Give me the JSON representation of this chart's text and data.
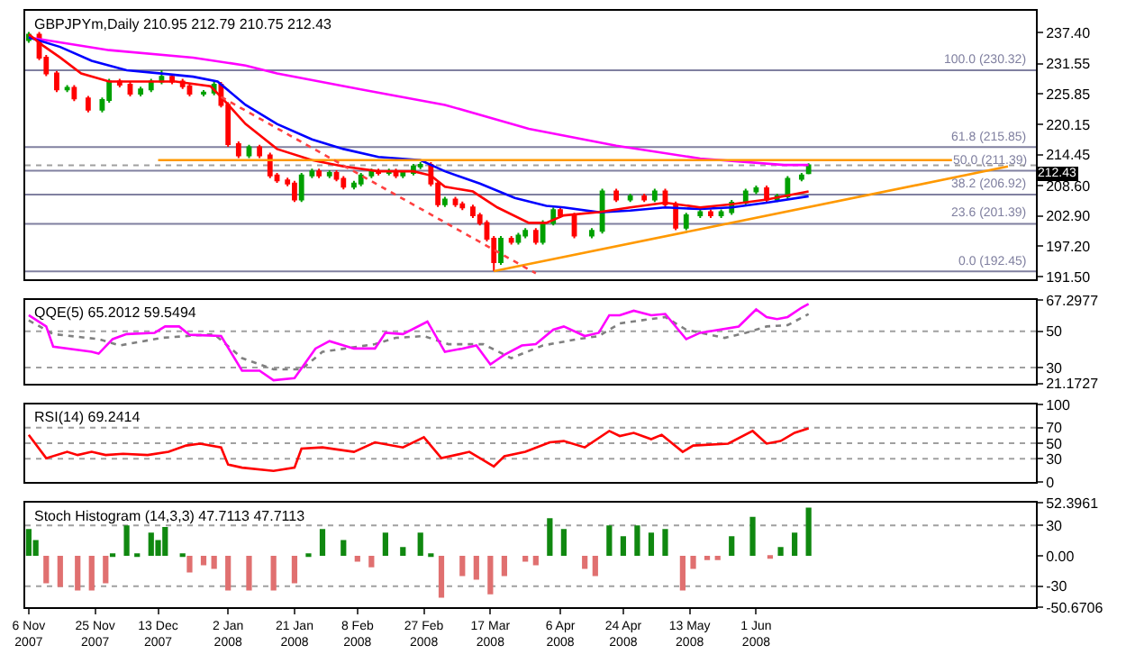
{
  "chart_data": [
    {
      "type": "candlestick",
      "title": "GBPJPYm,Daily 210.95 212.79 210.75 212.43",
      "tick_labels": "y",
      "xlim": [
        "2007-11-05",
        "2008-08-20"
      ],
      "ylim": [
        191.0,
        241.5
      ],
      "yticks": [
        {
          "value": 237.4,
          "label": "237.40"
        },
        {
          "value": 231.55,
          "label": "231.55"
        },
        {
          "value": 225.85,
          "label": "225.85"
        },
        {
          "value": 220.15,
          "label": "220.15"
        },
        {
          "value": 214.45,
          "label": "214.45"
        },
        {
          "value": 208.6,
          "label": "208.60"
        },
        {
          "value": 202.9,
          "label": "202.90"
        },
        {
          "value": 197.2,
          "label": "197.20"
        },
        {
          "value": 191.5,
          "label": "191.50"
        }
      ],
      "x": [
        "2007-11-06",
        "2007-11-09",
        "2007-11-11",
        "2007-11-14",
        "2007-11-17",
        "2007-11-19",
        "2007-11-23",
        "2007-11-27",
        "2007-11-29",
        "2007-12-02",
        "2007-12-05",
        "2007-12-08",
        "2007-12-11",
        "2007-12-14",
        "2007-12-17",
        "2007-12-20",
        "2007-12-22",
        "2007-12-26",
        "2007-12-29",
        "2007-12-31",
        "2008-01-02",
        "2008-01-05",
        "2008-01-08",
        "2008-01-11",
        "2008-01-14",
        "2008-01-16",
        "2008-01-19",
        "2008-01-21",
        "2008-01-23",
        "2008-01-26",
        "2008-01-28",
        "2008-01-31",
        "2008-02-02",
        "2008-02-04",
        "2008-02-07",
        "2008-02-09",
        "2008-02-12",
        "2008-02-14",
        "2008-02-17",
        "2008-02-19",
        "2008-02-21",
        "2008-02-24",
        "2008-02-26",
        "2008-02-29",
        "2008-03-02",
        "2008-03-04",
        "2008-03-07",
        "2008-03-09",
        "2008-03-12",
        "2008-03-14",
        "2008-03-16",
        "2008-03-18",
        "2008-03-20",
        "2008-03-23",
        "2008-03-25",
        "2008-03-27",
        "2008-03-30",
        "2008-04-01",
        "2008-04-04",
        "2008-04-06",
        "2008-04-10",
        "2008-04-15",
        "2008-04-18",
        "2008-04-22",
        "2008-04-26",
        "2008-04-30",
        "2008-05-03",
        "2008-05-06",
        "2008-05-09",
        "2008-05-12",
        "2008-05-16",
        "2008-05-19",
        "2008-05-22",
        "2008-05-25",
        "2008-05-29",
        "2008-06-01",
        "2008-06-04",
        "2008-06-07",
        "2008-06-10",
        "2008-06-14",
        "2008-06-16"
      ],
      "ohlc": [
        [
          236.0,
          237.5,
          235.5,
          237.0
        ],
        [
          237.0,
          237.5,
          232.2,
          232.7
        ],
        [
          232.7,
          233.2,
          229.2,
          229.7
        ],
        [
          229.7,
          230.2,
          226.2,
          226.7
        ],
        [
          226.7,
          227.5,
          226.2,
          227.0
        ],
        [
          227.0,
          227.5,
          224.5,
          225.0
        ],
        [
          225.0,
          225.5,
          222.4,
          222.9
        ],
        [
          222.9,
          225.2,
          222.4,
          224.7
        ],
        [
          224.7,
          228.7,
          224.2,
          228.2
        ],
        [
          228.2,
          228.7,
          227.1,
          227.6
        ],
        [
          227.6,
          228.1,
          225.4,
          225.9
        ],
        [
          225.9,
          227.2,
          225.4,
          226.7
        ],
        [
          226.7,
          228.7,
          226.2,
          228.2
        ],
        [
          228.2,
          230.3,
          227.7,
          229.1
        ],
        [
          229.1,
          229.6,
          227.7,
          228.2
        ],
        [
          228.2,
          228.7,
          226.8,
          227.3
        ],
        [
          227.3,
          227.8,
          225.4,
          225.9
        ],
        [
          225.9,
          226.6,
          225.4,
          226.1
        ],
        [
          226.1,
          228.1,
          225.6,
          227.6
        ],
        [
          227.6,
          228.1,
          223.3,
          223.8
        ],
        [
          223.8,
          224.3,
          215.9,
          216.4
        ],
        [
          216.4,
          216.9,
          213.8,
          214.3
        ],
        [
          214.3,
          216.3,
          213.8,
          215.8
        ],
        [
          215.8,
          216.3,
          213.8,
          214.3
        ],
        [
          214.3,
          214.8,
          210.0,
          210.5
        ],
        [
          210.5,
          211.0,
          209.1,
          209.6
        ],
        [
          209.6,
          210.1,
          208.5,
          209.0
        ],
        [
          209.0,
          209.5,
          205.5,
          206.0
        ],
        [
          206.0,
          211.0,
          205.5,
          210.5
        ],
        [
          210.5,
          211.8,
          210.0,
          211.3
        ],
        [
          211.3,
          211.8,
          210.0,
          210.5
        ],
        [
          210.5,
          211.5,
          210.0,
          211.0
        ],
        [
          211.0,
          211.5,
          209.4,
          209.9
        ],
        [
          209.9,
          210.4,
          207.9,
          208.4
        ],
        [
          208.4,
          209.5,
          207.9,
          209.0
        ],
        [
          209.0,
          211.0,
          208.5,
          210.5
        ],
        [
          210.5,
          211.8,
          210.0,
          211.3
        ],
        [
          211.3,
          211.8,
          210.5,
          211.0
        ],
        [
          211.0,
          211.8,
          210.5,
          211.3
        ],
        [
          211.3,
          211.8,
          210.0,
          210.5
        ],
        [
          210.5,
          211.5,
          210.0,
          211.0
        ],
        [
          211.0,
          212.7,
          210.5,
          212.2
        ],
        [
          212.2,
          213.0,
          211.7,
          212.5
        ],
        [
          212.5,
          213.0,
          208.5,
          209.0
        ],
        [
          209.0,
          209.5,
          204.6,
          205.1
        ],
        [
          205.1,
          206.5,
          204.6,
          206.0
        ],
        [
          206.0,
          206.5,
          204.6,
          205.1
        ],
        [
          205.1,
          205.6,
          204.0,
          204.5
        ],
        [
          204.5,
          205.0,
          202.5,
          203.0
        ],
        [
          203.0,
          203.5,
          201.1,
          201.6
        ],
        [
          201.6,
          202.1,
          198.1,
          198.6
        ],
        [
          198.6,
          199.1,
          192.5,
          194.2
        ],
        [
          194.2,
          199.1,
          193.7,
          198.6
        ],
        [
          198.6,
          199.1,
          197.5,
          198.0
        ],
        [
          198.0,
          199.7,
          197.5,
          199.2
        ],
        [
          199.2,
          200.6,
          198.7,
          200.1
        ],
        [
          200.1,
          200.6,
          197.5,
          198.0
        ],
        [
          198.0,
          202.1,
          197.5,
          201.6
        ],
        [
          201.6,
          204.5,
          201.1,
          204.0
        ],
        [
          204.0,
          204.5,
          202.5,
          203.0
        ],
        [
          203.0,
          203.5,
          198.7,
          199.2
        ],
        [
          199.2,
          200.6,
          198.7,
          200.1
        ],
        [
          200.1,
          208.0,
          199.6,
          207.5
        ],
        [
          207.5,
          208.0,
          205.5,
          206.0
        ],
        [
          206.0,
          207.1,
          205.5,
          206.6
        ],
        [
          206.6,
          207.1,
          205.5,
          206.0
        ],
        [
          206.0,
          208.0,
          205.5,
          207.5
        ],
        [
          207.5,
          208.0,
          204.6,
          205.1
        ],
        [
          205.1,
          205.6,
          200.2,
          200.7
        ],
        [
          200.7,
          203.5,
          200.2,
          203.0
        ],
        [
          203.0,
          204.1,
          202.5,
          203.6
        ],
        [
          203.6,
          204.1,
          202.5,
          203.0
        ],
        [
          203.0,
          204.1,
          202.5,
          203.6
        ],
        [
          203.6,
          205.9,
          203.1,
          205.4
        ],
        [
          205.4,
          208.0,
          204.9,
          207.5
        ],
        [
          207.5,
          208.6,
          207.0,
          208.1
        ],
        [
          208.1,
          208.6,
          205.5,
          206.0
        ],
        [
          206.0,
          207.1,
          205.5,
          206.6
        ],
        [
          206.6,
          210.4,
          206.1,
          209.9
        ],
        [
          209.9,
          211.0,
          209.4,
          210.5
        ],
        [
          210.95,
          212.79,
          210.75,
          212.43
        ]
      ],
      "series": [
        {
          "type": "line",
          "color": "#ff00ff",
          "x": [
            "2007-11-06",
            "2007-11-29",
            "2007-12-23",
            "2008-01-07",
            "2008-01-16",
            "2008-02-09",
            "2008-03-04",
            "2008-03-28",
            "2008-04-22",
            "2008-05-16",
            "2008-06-09",
            "2008-06-16"
          ],
          "values": [
            236.5,
            234.1,
            232.7,
            231.2,
            229.7,
            226.7,
            223.8,
            219.3,
            216.1,
            213.7,
            212.5,
            212.5
          ]
        },
        {
          "type": "line",
          "color": "#0000ff",
          "x": [
            "2007-11-06",
            "2007-11-15",
            "2007-11-24",
            "2007-12-04",
            "2007-12-14",
            "2007-12-23",
            "2007-12-30",
            "2008-01-07",
            "2008-01-16",
            "2008-01-26",
            "2008-02-04",
            "2008-02-14",
            "2008-02-26",
            "2008-03-04",
            "2008-03-14",
            "2008-03-24",
            "2008-04-02",
            "2008-04-07",
            "2008-04-17",
            "2008-04-26",
            "2008-05-06",
            "2008-05-16",
            "2008-05-25",
            "2008-06-04",
            "2008-06-16"
          ],
          "values": [
            236.5,
            234.7,
            232.1,
            230.3,
            229.7,
            229.1,
            228.2,
            223.8,
            220.2,
            217.3,
            215.5,
            214.0,
            213.4,
            211.3,
            209.0,
            206.3,
            204.8,
            204.5,
            203.6,
            203.9,
            204.5,
            204.2,
            204.5,
            205.4,
            206.6
          ]
        },
        {
          "type": "line",
          "color": "#ff0000",
          "x": [
            "2007-11-06",
            "2007-11-10",
            "2007-11-15",
            "2007-11-21",
            "2007-11-29",
            "2007-12-09",
            "2007-12-18",
            "2007-12-28",
            "2007-12-31",
            "2008-01-07",
            "2008-01-16",
            "2008-01-26",
            "2008-02-04",
            "2008-02-14",
            "2008-02-24",
            "2008-02-29",
            "2008-03-04",
            "2008-03-12",
            "2008-03-19",
            "2008-03-28",
            "2008-04-02",
            "2008-04-07",
            "2008-04-17",
            "2008-04-26",
            "2008-05-06",
            "2008-05-16",
            "2008-05-25",
            "2008-06-04",
            "2008-06-16"
          ],
          "values": [
            237.1,
            235.0,
            232.7,
            229.7,
            228.2,
            228.2,
            228.2,
            227.3,
            225.3,
            220.2,
            215.5,
            213.4,
            212.2,
            211.3,
            211.3,
            210.5,
            208.4,
            207.5,
            204.5,
            201.6,
            201.6,
            203.0,
            203.6,
            204.5,
            205.4,
            204.5,
            205.1,
            206.0,
            207.5
          ]
        },
        {
          "type": "line",
          "color": "#ff9900",
          "x": [
            "2008-03-18",
            "2008-08-12"
          ],
          "values": [
            192.5,
            212.2
          ]
        },
        {
          "type": "line",
          "color": "#ff9900",
          "x": [
            "2007-12-13",
            "2008-07-27"
          ],
          "values": [
            213.4,
            213.4
          ]
        },
        {
          "type": "line",
          "color": "#ff4040",
          "line_style": "dotted",
          "x": [
            "2007-12-31",
            "2008-03-30"
          ],
          "values": [
            225.3,
            192.1
          ]
        }
      ],
      "ref_lines": [
        {
          "axis": "y",
          "value": 230.32,
          "label": "100.0 (230.32)",
          "color": "#8080a0"
        },
        {
          "axis": "y",
          "value": 215.85,
          "label": "61.8 (215.85)",
          "color": "#8080a0"
        },
        {
          "axis": "y",
          "value": 211.39,
          "label": "50.0 (211.39)",
          "color": "#8080a0"
        },
        {
          "axis": "y",
          "value": 206.92,
          "label": "38.2 (206.92)",
          "color": "#8080a0"
        },
        {
          "axis": "y",
          "value": 201.39,
          "label": "23.6 (201.39)",
          "color": "#8080a0"
        },
        {
          "axis": "y",
          "value": 192.45,
          "label": "0.0 (192.45)",
          "color": "#8080a0"
        },
        {
          "axis": "y",
          "value": 212.43,
          "label": "212.43",
          "color": "#a0a0a0",
          "line_style": "dotted"
        }
      ]
    },
    {
      "type": "line",
      "title": "QQE(5) 65.2012 59.5494",
      "tick_labels": "y",
      "xlim": [
        "2007-11-05",
        "2008-08-20"
      ],
      "ylim": [
        21.1727,
        67.2977
      ],
      "yticks": [
        67.2977,
        50,
        30,
        21.1727
      ],
      "ref_lines": [
        {
          "axis": "y",
          "value": 50,
          "color": "#a0a0a0",
          "line_style": "dotted"
        },
        {
          "axis": "y",
          "value": 30,
          "color": "#a0a0a0",
          "line_style": "dotted"
        }
      ],
      "series": [
        {
          "color": "#808080",
          "line_style": "dotted",
          "x": [
            "2007-11-06",
            "2007-11-13",
            "2007-11-26",
            "2007-12-02",
            "2007-12-14",
            "2007-12-29",
            "2008-01-06",
            "2008-01-15",
            "2008-01-23",
            "2008-01-29",
            "2008-02-13",
            "2008-02-19",
            "2008-02-27",
            "2008-03-05",
            "2008-03-15",
            "2008-03-23",
            "2008-04-01",
            "2008-04-11",
            "2008-04-17",
            "2008-04-23",
            "2008-05-06",
            "2008-05-12",
            "2008-05-23",
            "2008-05-29",
            "2008-06-04",
            "2008-06-10",
            "2008-06-16"
          ],
          "values": [
            56.1,
            48.5,
            45.7,
            42.2,
            46.4,
            48.5,
            35.2,
            29.0,
            29.0,
            38.7,
            42.9,
            46.4,
            47.4,
            42.9,
            42.9,
            35.2,
            42.2,
            45.7,
            47.4,
            54.4,
            57.9,
            50.9,
            46.4,
            49.2,
            52.7,
            53.4,
            59.5494
          ]
        },
        {
          "color": "#ff00ff",
          "x": [
            "2007-11-06",
            "2007-11-11",
            "2007-11-13",
            "2007-11-24",
            "2007-11-26",
            "2007-11-30",
            "2007-12-04",
            "2007-12-12",
            "2007-12-15",
            "2007-12-19",
            "2007-12-22",
            "2007-12-31",
            "2008-01-06",
            "2008-01-11",
            "2008-01-15",
            "2008-01-21",
            "2008-01-27",
            "2008-01-31",
            "2008-02-07",
            "2008-02-13",
            "2008-02-16",
            "2008-02-21",
            "2008-02-28",
            "2008-03-04",
            "2008-03-09",
            "2008-03-13",
            "2008-03-17",
            "2008-03-21",
            "2008-03-26",
            "2008-03-30",
            "2008-04-04",
            "2008-04-07",
            "2008-04-13",
            "2008-04-17",
            "2008-04-20",
            "2008-04-23",
            "2008-04-27",
            "2008-05-02",
            "2008-05-06",
            "2008-05-12",
            "2008-05-16",
            "2008-05-27",
            "2008-06-01",
            "2008-06-04",
            "2008-06-07",
            "2008-06-10",
            "2008-06-14",
            "2008-06-16"
          ],
          "values": [
            58.9,
            52.7,
            41.5,
            38.7,
            37.7,
            45.7,
            48.5,
            49.2,
            52.7,
            52.7,
            48.1,
            47.4,
            28.3,
            28.3,
            23.0,
            24.1,
            40.5,
            44.6,
            40.5,
            40.5,
            49.2,
            48.5,
            55.4,
            38.7,
            40.5,
            42.2,
            31.7,
            37.0,
            42.2,
            42.9,
            50.9,
            52.7,
            47.4,
            49.2,
            58.9,
            58.9,
            61.4,
            58.9,
            59.6,
            45.7,
            49.2,
            52.7,
            62.1,
            57.9,
            56.8,
            57.9,
            63.1,
            65.2012
          ]
        }
      ]
    },
    {
      "type": "line",
      "title": "RSI(14) 69.2414",
      "tick_labels": "y",
      "xlim": [
        "2007-11-05",
        "2008-08-20"
      ],
      "ylim": [
        0,
        100
      ],
      "yticks": [
        100,
        70,
        50,
        30,
        0
      ],
      "ref_lines": [
        {
          "axis": "y",
          "value": 70,
          "color": "#a0a0a0",
          "line_style": "dotted"
        },
        {
          "axis": "y",
          "value": 50,
          "color": "#a0a0a0",
          "line_style": "dotted"
        },
        {
          "axis": "y",
          "value": 30,
          "color": "#a0a0a0",
          "line_style": "dotted"
        }
      ],
      "series": [
        {
          "color": "#ff0000",
          "x": [
            "2007-11-06",
            "2007-11-11",
            "2007-11-17",
            "2007-11-20",
            "2007-11-24",
            "2007-11-28",
            "2007-12-03",
            "2007-12-10",
            "2007-12-16",
            "2007-12-21",
            "2007-12-25",
            "2007-12-31",
            "2008-01-02",
            "2008-01-06",
            "2008-01-15",
            "2008-01-21",
            "2008-01-23",
            "2008-01-29",
            "2008-02-07",
            "2008-02-13",
            "2008-02-21",
            "2008-02-27",
            "2008-03-03",
            "2008-03-11",
            "2008-03-18",
            "2008-03-21",
            "2008-03-27",
            "2008-04-03",
            "2008-04-07",
            "2008-04-13",
            "2008-04-20",
            "2008-04-23",
            "2008-04-27",
            "2008-05-02",
            "2008-05-05",
            "2008-05-11",
            "2008-05-14",
            "2008-05-24",
            "2008-05-31",
            "2008-06-04",
            "2008-06-08",
            "2008-06-12",
            "2008-06-16"
          ],
          "values": [
            60.8,
            30.6,
            38.8,
            34.7,
            38.8,
            34.7,
            36.3,
            34.7,
            38.8,
            46.9,
            49.4,
            44.5,
            22.4,
            18.4,
            14.3,
            18.4,
            42.9,
            44.5,
            38.8,
            51.0,
            44.5,
            57.6,
            30.6,
            38.8,
            20.0,
            33.1,
            38.8,
            51.0,
            52.7,
            44.5,
            65.7,
            59.2,
            63.3,
            55.1,
            60.8,
            38.8,
            46.9,
            49.4,
            65.7,
            49.4,
            52.7,
            63.3,
            69.2414
          ]
        }
      ]
    },
    {
      "type": "bar",
      "title": "Stoch Histogram (14,3,3) 47.7113 47.7113",
      "xlim": [
        "2007-11-05",
        "2008-08-20"
      ],
      "ylim": [
        -50.6706,
        52.3961
      ],
      "yticks": [
        52.3961,
        30,
        {
          "value": 0,
          "label": "0.00"
        },
        -30,
        -50.6706
      ],
      "xticks": [
        {
          "value": "2007-11-06",
          "label": "6 Nov 2007"
        },
        {
          "value": "2007-11-25",
          "label": "25 Nov 2007"
        },
        {
          "value": "2007-12-13",
          "label": "13 Dec 2007"
        },
        {
          "value": "2008-01-02",
          "label": "2 Jan 2008"
        },
        {
          "value": "2008-01-21",
          "label": "21 Jan 2008"
        },
        {
          "value": "2008-02-08",
          "label": "8 Feb 2008"
        },
        {
          "value": "2008-02-27",
          "label": "27 Feb 2008"
        },
        {
          "value": "2008-03-17",
          "label": "17 Mar 2008"
        },
        {
          "value": "2008-04-06",
          "label": "6 Apr 2008"
        },
        {
          "value": "2008-04-24",
          "label": "24 Apr 2008"
        },
        {
          "value": "2008-05-13",
          "label": "13 May 2008"
        },
        {
          "value": "2008-06-01",
          "label": "1 Jun 2008"
        }
      ],
      "ref_lines": [
        {
          "axis": "y",
          "value": 30,
          "color": "#a0a0a0",
          "line_style": "dotted"
        },
        {
          "axis": "y",
          "value": -30,
          "color": "#a0a0a0",
          "line_style": "dotted"
        }
      ],
      "x": [
        "2007-11-06",
        "2007-11-08",
        "2007-11-11",
        "2007-11-15",
        "2007-11-20",
        "2007-11-24",
        "2007-11-28",
        "2007-11-30",
        "2007-12-04",
        "2007-12-07",
        "2007-12-11",
        "2007-12-13",
        "2007-12-15",
        "2007-12-20",
        "2007-12-22",
        "2007-12-26",
        "2007-12-29",
        "2008-01-02",
        "2008-01-08",
        "2008-01-15",
        "2008-01-21",
        "2008-01-25",
        "2008-01-29",
        "2008-02-04",
        "2008-02-08",
        "2008-02-12",
        "2008-02-16",
        "2008-02-21",
        "2008-02-26",
        "2008-02-29",
        "2008-03-03",
        "2008-03-09",
        "2008-03-13",
        "2008-03-17",
        "2008-03-21",
        "2008-03-27",
        "2008-03-30",
        "2008-04-03",
        "2008-04-07",
        "2008-04-13",
        "2008-04-16",
        "2008-04-20",
        "2008-04-24",
        "2008-04-28",
        "2008-05-02",
        "2008-05-06",
        "2008-05-11",
        "2008-05-14",
        "2008-05-18",
        "2008-05-21",
        "2008-05-25",
        "2008-05-31",
        "2008-06-05",
        "2008-06-08",
        "2008-06-12",
        "2008-06-16"
      ],
      "values": [
        26.4,
        15.7,
        -27.1,
        -30.7,
        -34.3,
        -34.3,
        -27.1,
        1.4,
        30,
        1.4,
        22.9,
        15.7,
        28.6,
        1.4,
        -16.4,
        -9.3,
        -12.9,
        -34.3,
        -34.3,
        -34.3,
        -27.1,
        1.4,
        26.4,
        15.7,
        -5.7,
        -11.4,
        22.9,
        8.6,
        22.9,
        1.4,
        -41.4,
        -20,
        -23.6,
        -37.9,
        -20,
        -5.7,
        -9.3,
        37.1,
        26.4,
        -12.9,
        -20,
        30,
        19.3,
        30,
        22.9,
        26.4,
        -34.3,
        -12.9,
        -4.3,
        -4.3,
        19.3,
        38.6,
        -2.1,
        8.6,
        22.9,
        47.7113
      ],
      "colors": [
        "#108810",
        "#108810",
        "#e07070",
        "#e07070",
        "#e07070",
        "#e07070",
        "#e07070",
        "#108810",
        "#108810",
        "#108810",
        "#108810",
        "#108810",
        "#108810",
        "#108810",
        "#e07070",
        "#e07070",
        "#e07070",
        "#e07070",
        "#e07070",
        "#e07070",
        "#e07070",
        "#108810",
        "#108810",
        "#108810",
        "#e07070",
        "#e07070",
        "#108810",
        "#108810",
        "#108810",
        "#108810",
        "#e07070",
        "#e07070",
        "#e07070",
        "#e07070",
        "#e07070",
        "#e07070",
        "#e07070",
        "#108810",
        "#108810",
        "#e07070",
        "#e07070",
        "#108810",
        "#108810",
        "#108810",
        "#108810",
        "#108810",
        "#e07070",
        "#e07070",
        "#e07070",
        "#e07070",
        "#108810",
        "#108810",
        "#e07070",
        "#108810",
        "#108810",
        "#108810"
      ]
    }
  ]
}
